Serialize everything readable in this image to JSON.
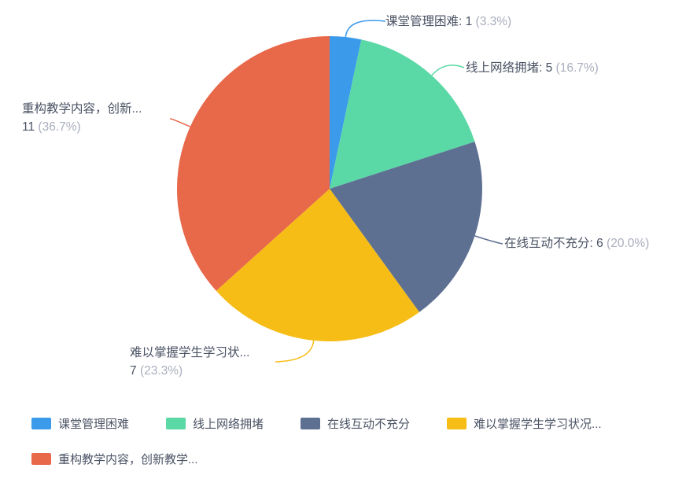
{
  "chart_data": {
    "type": "pie",
    "title": "",
    "categories": [
      "课堂管理困难",
      "线上网络拥堵",
      "在线互动不充分",
      "难以掌握学生学习状况...",
      "重构教学内容，创新教学..."
    ],
    "values": [
      1,
      5,
      6,
      7,
      11
    ],
    "percents": [
      "3.3%",
      "16.7%",
      "20.0%",
      "23.3%",
      "36.7%"
    ],
    "colors": [
      "#3c9aeb",
      "#5ad8a6",
      "#5d7092",
      "#f6bd16",
      "#e8684a"
    ],
    "legend_position": "bottom",
    "labels": [
      {
        "two_line": false,
        "text": "课堂管理困难: 1",
        "pct": "(3.3%)"
      },
      {
        "two_line": false,
        "text": "线上网络拥堵: 5",
        "pct": "(16.7%)"
      },
      {
        "two_line": false,
        "text": "在线互动不充分: 6",
        "pct": "(20.0%)"
      },
      {
        "two_line": true,
        "text": "难以掌握学生学习状...",
        "value_text": "7",
        "pct": "(23.3%)"
      },
      {
        "two_line": true,
        "text": "重构教学内容，创新...",
        "value_text": "11",
        "pct": "(36.7%)"
      }
    ],
    "legend": [
      "课堂管理困难",
      "线上网络拥堵",
      "在线互动不充分",
      "难以掌握学生学习状况...",
      "重构教学内容，创新教学..."
    ]
  },
  "text_colors": {
    "label_dark": "#4a5263",
    "label_gray": "#a9aebd"
  }
}
